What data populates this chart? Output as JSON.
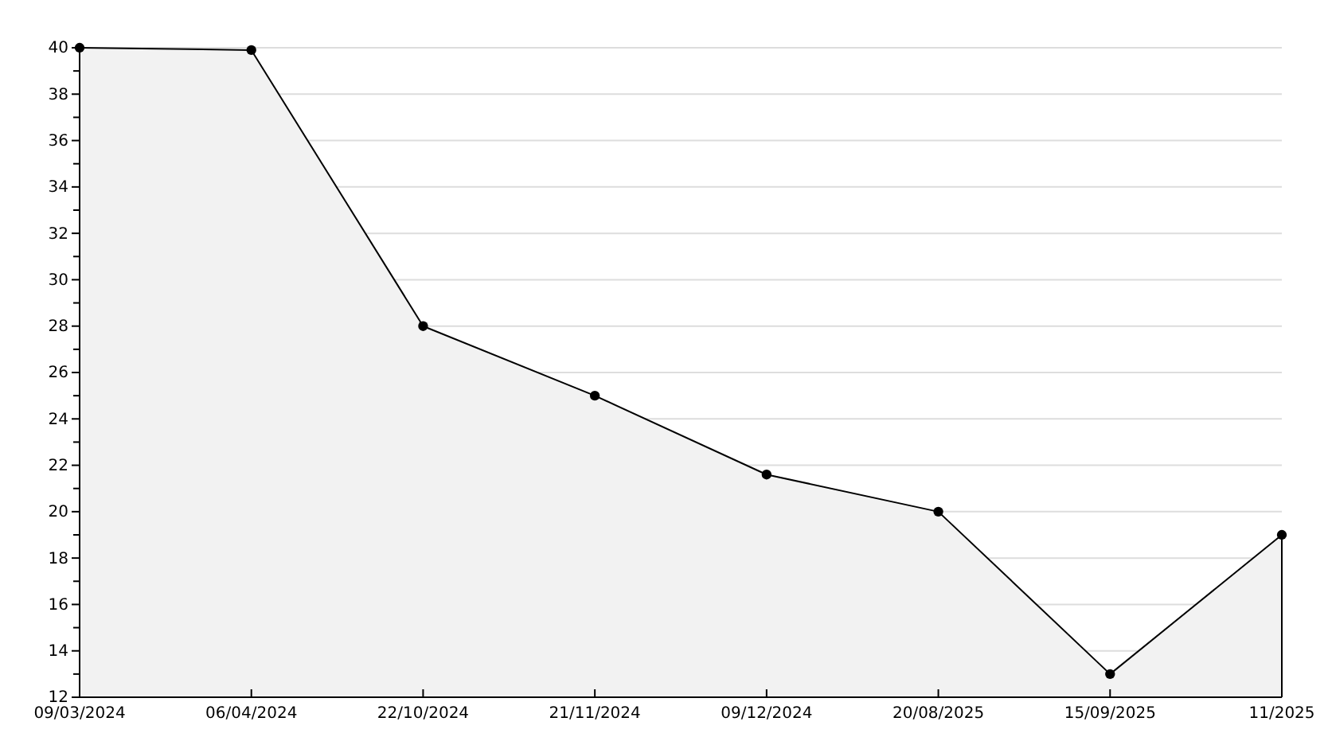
{
  "chart_data": {
    "type": "area",
    "categories": [
      "09/03/2024",
      "06/04/2024",
      "22/10/2024",
      "21/11/2024",
      "09/12/2024",
      "20/08/2025",
      "15/09/2025",
      "11/2025"
    ],
    "series": [
      {
        "color": "#000000",
        "values": [
          40,
          39.9,
          28,
          25,
          21.6,
          20,
          13,
          19
        ]
      }
    ],
    "ylim": [
      12,
      40
    ],
    "yticks": [
      12,
      {
        "value": 13,
        "label": null
      },
      14,
      {
        "value": 15,
        "label": null
      },
      16,
      {
        "value": 17,
        "label": null
      },
      18,
      {
        "value": 19,
        "label": null
      },
      20,
      {
        "value": 21,
        "label": null
      },
      22,
      {
        "value": 23,
        "label": null
      },
      24,
      {
        "value": 25,
        "label": null
      },
      26,
      {
        "value": 27,
        "label": null
      },
      28,
      {
        "value": 29,
        "label": null
      },
      30,
      {
        "value": 31,
        "label": null
      },
      32,
      {
        "value": 33,
        "label": null
      },
      34,
      {
        "value": 35,
        "label": null
      },
      36,
      {
        "value": 37,
        "label": null
      },
      38,
      {
        "value": 39,
        "label": null
      },
      40
    ],
    "grid": "y",
    "marker": "circle",
    "line_style": "solid"
  }
}
